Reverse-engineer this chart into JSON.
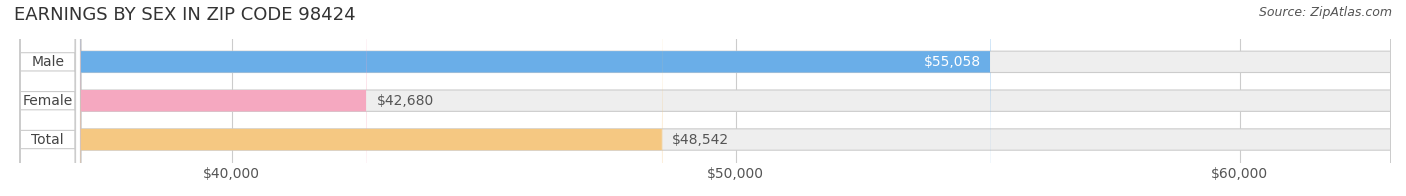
{
  "title": "EARNINGS BY SEX IN ZIP CODE 98424",
  "source": "Source: ZipAtlas.com",
  "categories": [
    "Male",
    "Female",
    "Total"
  ],
  "values": [
    55058,
    42680,
    48542
  ],
  "bar_colors": [
    "#6aaee8",
    "#f5a8c0",
    "#f5c882"
  ],
  "bar_bg_color": "#eeeeee",
  "label_colors": [
    "#ffffff",
    "#555555",
    "#555555"
  ],
  "value_labels": [
    "$55,058",
    "$42,680",
    "$48,542"
  ],
  "x_min": 37000,
  "x_max": 63000,
  "x_ticks": [
    40000,
    50000,
    60000
  ],
  "x_tick_labels": [
    "$40,000",
    "$50,000",
    "$60,000"
  ],
  "title_fontsize": 13,
  "label_fontsize": 10,
  "source_fontsize": 9,
  "background_color": "#ffffff",
  "bar_height": 0.55
}
